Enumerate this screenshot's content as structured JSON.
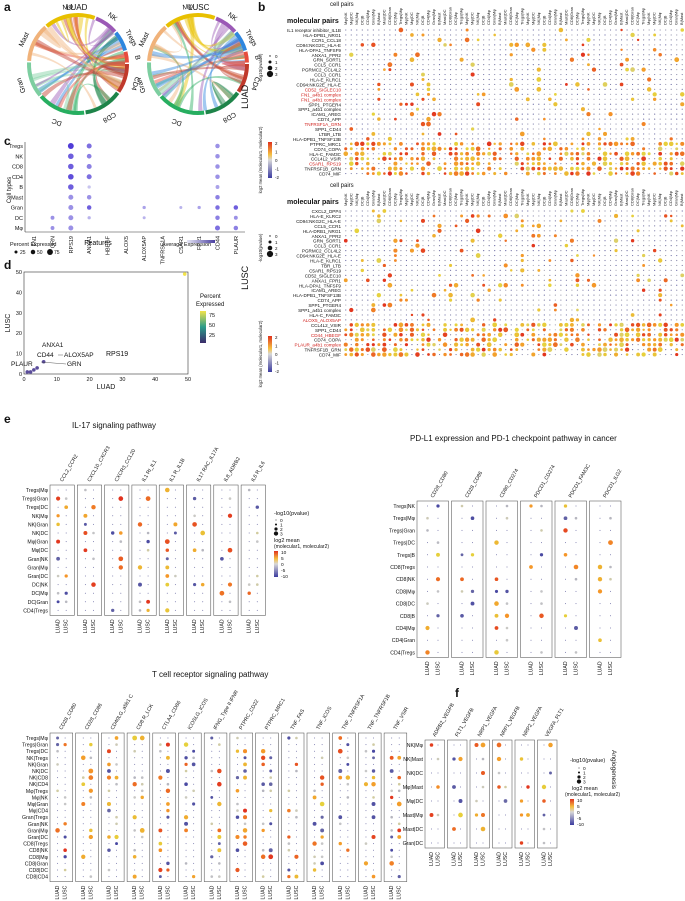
{
  "panels": {
    "a": {
      "letter": "a",
      "titles": [
        "LUAD",
        "LUSC"
      ],
      "cell_labels": [
        "Mφ",
        "NK",
        "Tregs",
        "B",
        "CD4",
        "CD8",
        "DC",
        "Gran",
        "Mast"
      ]
    },
    "b": {
      "letter": "b",
      "cell_pairs_label": "cell pairs",
      "molecular_pairs_label": "molecular pairs",
      "luad_label": "LUAD",
      "lusc_label": "LUSC",
      "size_legend_title": "-log10(pvalue)",
      "size_legend_values": [
        "0",
        "1",
        "2",
        "3"
      ],
      "color_legend_title": "log2 mean (molecular1, molecular2)",
      "color_legend_values": [
        "2",
        "1",
        "0",
        "-1",
        "-2"
      ]
    },
    "c": {
      "letter": "c",
      "ylabel": "Cell types",
      "xlabel": "Features",
      "pct_legend_title": "Percent Expressed",
      "pct_legend_values": [
        "25",
        "50",
        "75"
      ],
      "avg_legend_title": "Average Expression"
    },
    "d": {
      "letter": "d",
      "title": "RPS19",
      "xlabel": "LUAD",
      "ylabel": "LUSC",
      "legend_title": "Percent Expressed",
      "legend_values": [
        "75",
        "50",
        "25"
      ],
      "annotations": [
        "ANXA1",
        "CD44",
        "ALOX5AP",
        "PLAUR",
        "GRN"
      ]
    },
    "e": {
      "letter": "e",
      "il17_title": "IL-17 signaling pathway",
      "pdl1_title": "PD-L1 expression and PD-1 checkpoint pathway in cancer",
      "tcr_title": "T cell receptor signaling pathway",
      "size_legend_title": "-log10(pvalue)",
      "size_legend_values": [
        "0",
        "1",
        "2",
        "3"
      ],
      "color_legend_title": "log2 mean (molecular1, molecular2)",
      "color_legend_values": [
        "10",
        "5",
        "0",
        "-5",
        "-10"
      ]
    },
    "f": {
      "letter": "f",
      "side_label": "Angiogenesis",
      "size_legend_title": "-log10(pvalue)",
      "size_legend_values": [
        "0",
        "1",
        "2",
        "3"
      ],
      "color_legend_title": "log2 mean (molecular1, molecular2)",
      "color_legend_values": [
        "10",
        "5",
        "0",
        "-5",
        "-10"
      ]
    }
  },
  "chart_data": [
    {
      "type": "chord",
      "panel": "a",
      "title": "LUAD",
      "categories": [
        "Mφ",
        "NK",
        "Tregs",
        "B",
        "CD4",
        "CD8",
        "DC",
        "Gran",
        "Mast"
      ],
      "colors": [
        "#e8c000",
        "#9b59b6",
        "#2e86de",
        "#e74c3c",
        "#c0392b",
        "#1e8449",
        "#27ae60",
        "#7dcea0",
        "#f0b27a"
      ]
    },
    {
      "type": "chord",
      "panel": "a",
      "title": "LUSC",
      "categories": [
        "Mφ",
        "NK",
        "Tregs",
        "B",
        "CD4",
        "CD8",
        "DC",
        "Gran",
        "Mast"
      ],
      "colors": [
        "#e8c000",
        "#9b59b6",
        "#2e86de",
        "#e74c3c",
        "#c0392b",
        "#1e8449",
        "#27ae60",
        "#7dcea0",
        "#f0b27a"
      ]
    },
    {
      "type": "scatter",
      "panel": "c",
      "subtype": "dotplot",
      "features": [
        "FN1",
        "GRN",
        "RPS19",
        "ANXA1",
        "HBEGF",
        "ALOX5",
        "ALOX5AP",
        "TNFRSF1A",
        "C5AR1",
        "FPR1",
        "CD44",
        "PLAUR"
      ],
      "cell_types": [
        "Tregs",
        "NK",
        "CD8",
        "CD4",
        "B",
        "Mast",
        "Gran",
        "DC",
        "Mφ"
      ],
      "dots": [
        {
          "f": "RPS19",
          "c": "Tregs",
          "pct": 75,
          "avg": 1.0
        },
        {
          "f": "RPS19",
          "c": "NK",
          "pct": 70,
          "avg": 0.8
        },
        {
          "f": "RPS19",
          "c": "CD8",
          "pct": 70,
          "avg": 0.8
        },
        {
          "f": "RPS19",
          "c": "CD4",
          "pct": 70,
          "avg": 0.9
        },
        {
          "f": "RPS19",
          "c": "B",
          "pct": 70,
          "avg": 0.8
        },
        {
          "f": "RPS19",
          "c": "Mast",
          "pct": 60,
          "avg": 0.5
        },
        {
          "f": "RPS19",
          "c": "Gran",
          "pct": 60,
          "avg": 0.5
        },
        {
          "f": "RPS19",
          "c": "DC",
          "pct": 60,
          "avg": 0.5
        },
        {
          "f": "RPS19",
          "c": "Mφ",
          "pct": 60,
          "avg": 0.5
        },
        {
          "f": "ANXA1",
          "c": "Tregs",
          "pct": 60,
          "avg": 0.7
        },
        {
          "f": "ANXA1",
          "c": "NK",
          "pct": 55,
          "avg": 0.6
        },
        {
          "f": "ANXA1",
          "c": "CD8",
          "pct": 60,
          "avg": 0.6
        },
        {
          "f": "ANXA1",
          "c": "CD4",
          "pct": 60,
          "avg": 0.7
        },
        {
          "f": "ANXA1",
          "c": "B",
          "pct": 30,
          "avg": 0.2
        },
        {
          "f": "ANXA1",
          "c": "Mast",
          "pct": 50,
          "avg": 0.5
        },
        {
          "f": "ANXA1",
          "c": "Gran",
          "pct": 50,
          "avg": 0.8
        },
        {
          "f": "ANXA1",
          "c": "DC",
          "pct": 30,
          "avg": 0.3
        },
        {
          "f": "CD44",
          "c": "Tregs",
          "pct": 50,
          "avg": 0.5
        },
        {
          "f": "CD44",
          "c": "NK",
          "pct": 50,
          "avg": 0.5
        },
        {
          "f": "CD44",
          "c": "CD8",
          "pct": 50,
          "avg": 0.5
        },
        {
          "f": "CD44",
          "c": "CD4",
          "pct": 50,
          "avg": 0.5
        },
        {
          "f": "CD44",
          "c": "B",
          "pct": 40,
          "avg": 0.4
        },
        {
          "f": "CD44",
          "c": "Mast",
          "pct": 50,
          "avg": 0.6
        },
        {
          "f": "CD44",
          "c": "Gran",
          "pct": 50,
          "avg": 0.7
        },
        {
          "f": "CD44",
          "c": "DC",
          "pct": 50,
          "avg": 0.6
        },
        {
          "f": "CD44",
          "c": "Mφ",
          "pct": 60,
          "avg": 0.7
        },
        {
          "f": "PLAUR",
          "c": "Gran",
          "pct": 50,
          "avg": 0.8
        },
        {
          "f": "PLAUR",
          "c": "DC",
          "pct": 40,
          "avg": 0.5
        },
        {
          "f": "PLAUR",
          "c": "Mφ",
          "pct": 50,
          "avg": 0.6
        },
        {
          "f": "GRN",
          "c": "DC",
          "pct": 40,
          "avg": 0.5
        },
        {
          "f": "GRN",
          "c": "Mφ",
          "pct": 40,
          "avg": 0.5
        },
        {
          "f": "FPR1",
          "c": "Gran",
          "pct": 30,
          "avg": 0.4
        },
        {
          "f": "C5AR1",
          "c": "Gran",
          "pct": 25,
          "avg": 0.3
        },
        {
          "f": "ALOX5AP",
          "c": "Gran",
          "pct": 30,
          "avg": 0.4
        },
        {
          "f": "ALOX5AP",
          "c": "DC",
          "pct": 25,
          "avg": 0.3
        }
      ]
    },
    {
      "type": "scatter",
      "panel": "d",
      "title": "RPS19",
      "xlabel": "LUAD",
      "ylabel": "LUSC",
      "xlim": [
        0,
        50
      ],
      "ylim": [
        0,
        50
      ],
      "x_ticks": [
        0,
        10,
        20,
        30,
        40,
        50
      ],
      "y_ticks": [
        0,
        10,
        20,
        30,
        40,
        50
      ],
      "points": [
        {
          "label": "RPS19",
          "x": 49,
          "y": 49,
          "pct": 80
        },
        {
          "label": "ANXA1",
          "x": 6,
          "y": 6,
          "pct": 40
        },
        {
          "label": "CD44",
          "x": 4,
          "y": 3,
          "pct": 30
        },
        {
          "label": "ALOX5AP",
          "x": 3,
          "y": 2,
          "pct": 25
        },
        {
          "label": "PLAUR",
          "x": 1,
          "y": 1,
          "pct": 25
        },
        {
          "label": "GRN",
          "x": 2,
          "y": 1,
          "pct": 25
        }
      ]
    },
    {
      "type": "scatter",
      "panel": "b",
      "subtype": "dotplot",
      "title": "LUAD",
      "rows": [
        "IL1 receptor inhibitor_IL1B",
        "HLA-DPB1_NRG1",
        "CCR1_CCL18",
        "CD94:NKG2C_HLA-E",
        "HLA-DPA1_TNFSF9",
        "ANXA1_FPR2",
        "GRN_SORT1",
        "CCL5_CCR1",
        "PGRMC2_CCL4L2",
        "CCL3_CCR1",
        "HLA-E_KLRC1",
        "CD94:NKG2E_HLA-E",
        "CD52_SIGLEC10",
        "FN1_a4b1 complex",
        "FN1_a4b1 complex",
        "SPP1_PTGER4",
        "SPP1_a4b1 complex",
        "ICAM1_AREG",
        "CD74_APP",
        "TNFRSF1A_GRN",
        "SPP1_CD44",
        "LTBR_LTB",
        "HLA-DPB1_TNFSF13B",
        "PTPRC_MRC1",
        "CD74_COPA",
        "HLA-C_FAM3C",
        "CCL4L2_VSIR",
        "C5AR1_RPS19",
        "TNFRSF1B_GRN",
        "CD74_MIF"
      ],
      "red_rows": [
        "CD52_SIGLEC10",
        "FN1_a4b1 complex",
        "TNFRSF1A_GRN",
        "C5AR1_RPS19"
      ]
    },
    {
      "type": "scatter",
      "panel": "b",
      "subtype": "dotplot",
      "title": "LUSC",
      "rows": [
        "CXCL2_DPP4",
        "HLA-E_KLRC2",
        "CD94:NKG2C_HLA-E",
        "CCL5_CCR1",
        "HLA-DRB1_NRG1",
        "ANXA1_FPR2",
        "GRN_SORT1",
        "CCL3_CCR1",
        "PGRMC2_CCL4L2",
        "CD94:NKG2E_HLA-E",
        "HLA-E_KLRC1",
        "TBR_LTB",
        "C5AR1_RPS19",
        "CD52_SIGLEC10",
        "ANXA1_FPR1",
        "HLA-DPA1_TNFSF9",
        "ICAM1_AREG",
        "HLA-DPB1_TNFSF13B",
        "CD74_APP",
        "SPP1_PTGER4",
        "SPP1_a4b1 complex",
        "HLA-C_FAM3C",
        "ALOX5_ALOX5AP",
        "CCL4L2_VSIR",
        "SPP1_CD44",
        "CD44_HBEGF",
        "CD74_COPA",
        "PLAUR_a4b1 complex",
        "TNFRSF1B_GRN",
        "CD74_MIF"
      ],
      "red_rows": [
        "ALOX5_ALOX5AP",
        "CD44_HBEGF",
        "PLAUR_a4b1 complex"
      ]
    },
    {
      "type": "scatter",
      "panel": "e",
      "subtype": "dotplot",
      "title": "IL-17 signaling pathway",
      "groups": [
        "CCL2_CCR2",
        "CXCL10_CXCR3",
        "CXCR3_CCL20",
        "IL1 RI_IL1",
        "IL1 R_IL1B",
        "IL17 RAC_IL17A",
        "IL8_ADRB2",
        "IL6 R_IL6"
      ],
      "rows": [
        "Tregs|Mφ",
        "Tregs|Gran",
        "Tregs|DC",
        "NK|Mφ",
        "NK|Gran",
        "NK|DC",
        "Mφ|Gran",
        "Mφ|DC",
        "Gran|NK",
        "Gran|Mφ",
        "Gran|DC",
        "DC|NK",
        "DC|Mφ",
        "DC|Gran",
        "CD4|Tregs"
      ],
      "columns": [
        "LUAD",
        "LUSC"
      ]
    },
    {
      "type": "scatter",
      "panel": "e",
      "subtype": "dotplot",
      "title": "PD-L1 expression and PD-1 checkpoint pathway in cancer",
      "groups": [
        "CD28_CD80",
        "CD28_CD86",
        "CD80_CD274",
        "PDCD1_CD274",
        "PDCD1_FAM3C",
        "PDCD1_ILG2"
      ],
      "rows": [
        "Tregs|NK",
        "Tregs|Mφ",
        "Tregs|Gran",
        "Tregs|DC",
        "Tregs|B",
        "CD8|Tregs",
        "CD8|NK",
        "CD8|Mφ",
        "CD8|DC",
        "CD8|B",
        "CD4|Mφ",
        "CD4|Gran",
        "CD4|Tregs"
      ],
      "columns": [
        "LUAD",
        "LUSC"
      ]
    },
    {
      "type": "scatter",
      "panel": "e",
      "subtype": "dotplot",
      "title": "T cell receptor signaling pathway",
      "groups": [
        "CD28_CD80",
        "CD28_CD86",
        "CD40LG_a5b1 C",
        "CD8 R_LCK",
        "CTLA4_CD86",
        "ICOSLG_ICOS",
        "IFNG_Type II IFNR",
        "PTPRC_CD22",
        "PTPRC_MRC1",
        "TNF_FAS",
        "TNF_ICOS",
        "TNF_TNFRSF1A",
        "TNF_TNFRSF1B",
        "TNF_VSIR"
      ],
      "rows": [
        "Tregs|Mφ",
        "Tregs|Gran",
        "Tregs|DC",
        "NK|Tregs",
        "NK|Gran",
        "NK|DC",
        "NK|CD8",
        "NK|CD4",
        "Mφ|Tregs",
        "Mφ|NK",
        "Mφ|Gran",
        "Mφ|CD4",
        "Gran|Tregs",
        "Gran|NK",
        "Gran|Mφ",
        "Gran|DC",
        "CD8|Tregs",
        "CD8|NK",
        "CD8|Mφ",
        "CD8|Gran",
        "CD8|DC",
        "CD8|CD4"
      ],
      "columns": [
        "LUAD",
        "LUSC"
      ]
    },
    {
      "type": "scatter",
      "panel": "f",
      "subtype": "dotplot",
      "title": "",
      "groups": [
        "ADRB2_VEGFB",
        "FLT1_VEGFB",
        "NRP1_VEGFA",
        "NRP1_VEGFB",
        "NRP2_VEGFA",
        "VEGFA_FLT1"
      ],
      "rows": [
        "NK|Mφ",
        "NK|Mast",
        "NK|DC",
        "Mφ|Mast",
        "Mφ|DC",
        "Mast|Mφ",
        "Mast|DC",
        "Gran|DC"
      ],
      "columns": [
        "LUAD",
        "LUSC"
      ]
    }
  ]
}
